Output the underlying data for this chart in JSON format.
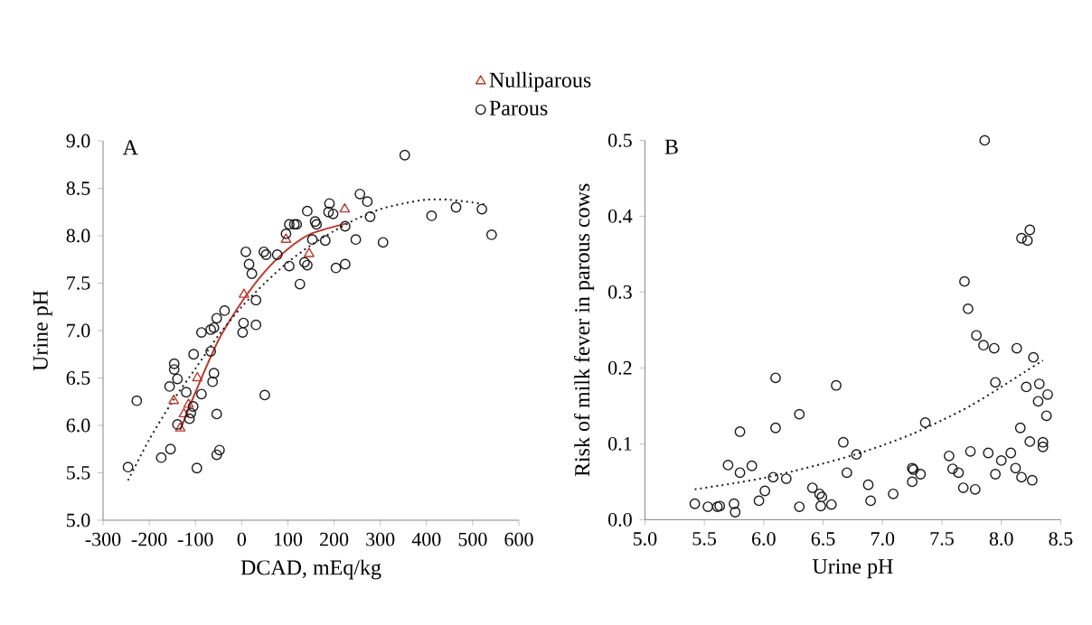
{
  "chart_data": [
    {
      "type": "scatter",
      "title": "A",
      "xlabel": "DCAD, mEq/kg",
      "ylabel": "Urine pH",
      "legend": "top",
      "xlim": [
        -300,
        600
      ],
      "xticks": [
        -300,
        -200,
        -100,
        0,
        100,
        200,
        300,
        400,
        500,
        600
      ],
      "ylim": [
        5,
        9
      ],
      "yticks": [
        {
          "value": 5,
          "label": "5.0"
        },
        {
          "value": 5.5,
          "label": "5.5"
        },
        {
          "value": 6,
          "label": "6.0"
        },
        {
          "value": 6.5,
          "label": "6.5"
        },
        {
          "value": 7,
          "label": "7.0"
        },
        {
          "value": 7.5,
          "label": "7.5"
        },
        {
          "value": 8,
          "label": "8.0"
        },
        {
          "value": 8.5,
          "label": "8.5"
        },
        {
          "value": 9,
          "label": "9.0"
        }
      ],
      "series": [
        {
          "name": "Nulliparous",
          "marker": "triangle",
          "color": "#c0392b",
          "x": [
            -147,
            -133,
            -125,
            -115,
            -96,
            5,
            96,
            146,
            223
          ],
          "values": [
            6.26,
            5.97,
            6.12,
            6.22,
            6.5,
            7.38,
            7.96,
            7.81,
            8.28
          ]
        },
        {
          "name": "Parous",
          "marker": "circle",
          "color": "#1a1a1a",
          "x": [
            -246,
            -227,
            -174,
            -154,
            -97,
            -54,
            -48,
            -54,
            -146,
            -146,
            -156,
            -139,
            -104,
            -87,
            -67,
            -60,
            -37,
            -54,
            2,
            4,
            31,
            31,
            50,
            -60,
            -63,
            -67,
            -87,
            -113,
            -139,
            -110,
            -120,
            -105,
            353,
            411,
            464,
            520,
            541,
            256,
            272,
            278,
            247,
            306,
            224,
            190,
            188,
            198,
            142,
            159,
            162,
            103,
            114,
            119,
            96,
            153,
            181,
            48,
            53,
            9,
            16,
            22,
            77,
            103,
            136,
            142,
            126,
            204,
            224
          ],
          "values": [
            5.56,
            6.26,
            5.66,
            5.75,
            5.55,
            5.69,
            5.74,
            6.12,
            6.65,
            6.59,
            6.41,
            6.49,
            6.75,
            6.98,
            7.01,
            7.03,
            7.21,
            7.13,
            6.98,
            7.08,
            7.32,
            7.06,
            6.32,
            6.55,
            6.46,
            6.78,
            6.33,
            6.07,
            6.01,
            6.13,
            6.35,
            6.2,
            8.85,
            8.21,
            8.3,
            8.28,
            8.01,
            8.44,
            8.36,
            8.2,
            7.96,
            7.93,
            8.1,
            8.34,
            8.25,
            8.23,
            8.26,
            8.15,
            8.12,
            8.12,
            8.12,
            8.12,
            8.02,
            7.96,
            7.95,
            7.83,
            7.8,
            7.83,
            7.7,
            7.6,
            7.8,
            7.68,
            7.72,
            7.69,
            7.49,
            7.66,
            7.7
          ]
        },
        {
          "type": "line",
          "line_style": "solid",
          "marker": "none",
          "color": "#c0392b",
          "x": [
            -133,
            -100,
            -50,
            0,
            50,
            100,
            150,
            227
          ],
          "values": [
            5.95,
            6.35,
            6.9,
            7.3,
            7.62,
            7.86,
            8.02,
            8.13
          ]
        },
        {
          "type": "line",
          "line_style": "dotted",
          "marker": "none",
          "color": "#1a1a1a",
          "x": [
            -246,
            -200,
            -150,
            -100,
            -50,
            0,
            50,
            100,
            150,
            200,
            250,
            300,
            350,
            400,
            450,
            500,
            525
          ],
          "values": [
            5.42,
            5.85,
            6.25,
            6.6,
            6.95,
            7.25,
            7.5,
            7.72,
            7.9,
            8.05,
            8.18,
            8.28,
            8.34,
            8.38,
            8.38,
            8.35,
            8.33
          ]
        }
      ]
    },
    {
      "type": "scatter",
      "title": "B",
      "xlabel": "Urine pH",
      "ylabel": "Risk of milk fever in parous cows",
      "xlim": [
        5,
        8.5
      ],
      "xticks": [
        {
          "value": 5,
          "label": "5.0"
        },
        {
          "value": 5.5,
          "label": "5.5"
        },
        {
          "value": 6,
          "label": "6.0"
        },
        {
          "value": 6.5,
          "label": "6.5"
        },
        {
          "value": 7,
          "label": "7.0"
        },
        {
          "value": 7.5,
          "label": "7.5"
        },
        {
          "value": 8,
          "label": "8.0"
        },
        {
          "value": 8.5,
          "label": "8.5"
        }
      ],
      "ylim": [
        0,
        0.5
      ],
      "yticks": [
        {
          "value": 0,
          "label": "0.0"
        },
        0.1,
        0.2,
        0.3,
        0.4,
        0.5
      ],
      "series": [
        {
          "marker": "circle",
          "color": "#1a1a1a",
          "x": [
            5.42,
            5.53,
            5.61,
            5.63,
            5.75,
            5.76,
            5.7,
            5.8,
            5.8,
            5.9,
            5.96,
            6.01,
            6.08,
            6.1,
            6.1,
            6.19,
            6.3,
            6.3,
            6.41,
            6.47,
            6.49,
            6.48,
            6.57,
            6.61,
            6.67,
            6.7,
            6.78,
            6.88,
            6.9,
            7.09,
            7.25,
            7.26,
            7.25,
            7.32,
            7.36,
            7.56,
            7.59,
            7.64,
            7.68,
            7.72,
            7.74,
            7.78,
            7.79,
            7.85,
            7.89,
            7.94,
            7.95,
            7.95,
            8.0,
            8.08,
            8.12,
            8.13,
            8.16,
            8.17,
            8.21,
            8.24,
            8.26,
            8.27,
            8.31,
            8.32,
            8.35,
            8.35,
            8.38,
            8.39,
            7.86,
            7.69,
            8.17,
            8.24,
            8.22
          ],
          "values": [
            0.021,
            0.017,
            0.017,
            0.018,
            0.021,
            0.01,
            0.072,
            0.062,
            0.116,
            0.071,
            0.025,
            0.038,
            0.056,
            0.187,
            0.121,
            0.054,
            0.139,
            0.017,
            0.042,
            0.034,
            0.03,
            0.018,
            0.02,
            0.177,
            0.102,
            0.062,
            0.086,
            0.046,
            0.025,
            0.034,
            0.068,
            0.066,
            0.05,
            0.06,
            0.128,
            0.084,
            0.067,
            0.062,
            0.042,
            0.278,
            0.09,
            0.04,
            0.243,
            0.23,
            0.088,
            0.226,
            0.181,
            0.06,
            0.078,
            0.088,
            0.068,
            0.226,
            0.121,
            0.056,
            0.175,
            0.103,
            0.052,
            0.214,
            0.156,
            0.179,
            0.102,
            0.096,
            0.137,
            0.165,
            0.5,
            0.314,
            0.371,
            0.382,
            0.368
          ]
        },
        {
          "type": "line",
          "line_style": "dotted",
          "marker": "none",
          "color": "#1a1a1a",
          "x": [
            5.42,
            5.75,
            6.0,
            6.25,
            6.5,
            6.75,
            7.0,
            7.25,
            7.5,
            7.75,
            8.0,
            8.2,
            8.35
          ],
          "values": [
            0.04,
            0.048,
            0.055,
            0.064,
            0.074,
            0.085,
            0.098,
            0.113,
            0.131,
            0.151,
            0.175,
            0.195,
            0.21
          ]
        }
      ]
    }
  ]
}
